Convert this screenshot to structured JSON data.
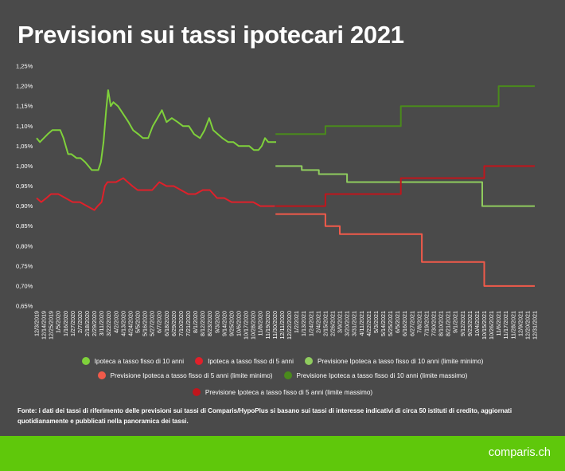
{
  "title": "Previsioni sui tassi ipotecari 2021",
  "chart_data": {
    "type": "line",
    "title": "Previsioni sui tassi ipotecari 2021",
    "xlabel": "",
    "ylabel": "",
    "ylim": [
      0.65,
      1.25
    ],
    "y_ticks": [
      "1,25%",
      "1,20%",
      "1,15%",
      "1,10%",
      "1,05%",
      "1,00%",
      "0,95%",
      "0,90%",
      "0,85%",
      "0,80%",
      "0,75%",
      "0,70%",
      "0,65%"
    ],
    "x_ticks": [
      "12/3/2019",
      "12/14/2019",
      "12/25/2019",
      "1/5/2020",
      "1/16/2020",
      "1/27/2020",
      "2/7/2020",
      "2/18/2020",
      "2/29/2020",
      "3/11/2020",
      "3/22/2020",
      "4/2/2020",
      "4/13/2020",
      "4/24/2020",
      "5/5/2020",
      "5/16/2020",
      "5/27/2020",
      "6/7/2020",
      "6/18/2020",
      "6/29/2020",
      "7/10/2020",
      "7/21/2020",
      "8/1/2020",
      "8/12/2020",
      "8/23/2020",
      "9/3/2020",
      "9/14/2020",
      "9/25/2020",
      "10/6/2020",
      "10/17/2020",
      "10/28/2020",
      "11/8/2020",
      "11/19/2020",
      "11/30/2020",
      "12/11/2020",
      "12/22/2020",
      "1/2/2021",
      "1/13/2021",
      "1/24/2021",
      "2/4/2021",
      "2/15/2021",
      "2/26/2021",
      "3/9/2021",
      "3/20/2021",
      "3/31/2021",
      "4/11/2021",
      "4/22/2021",
      "5/3/2021",
      "5/14/2021",
      "5/25/2021",
      "6/5/2021",
      "6/16/2021",
      "6/27/2021",
      "7/8/2021",
      "7/19/2021",
      "7/30/2021",
      "8/10/2021",
      "8/21/2021",
      "9/1/2021",
      "9/12/2021",
      "9/23/2021",
      "10/4/2021",
      "10/15/2021",
      "10/26/2021",
      "11/6/2021",
      "11/17/2021",
      "11/28/2021",
      "12/9/2021",
      "12/20/2021",
      "12/31/2021"
    ],
    "series": [
      {
        "name": "Ipoteca a tasso fisso di 10 anni",
        "color": "#7fd13b",
        "step": false,
        "x": [
          "12/3/2019",
          "12/8/2019",
          "12/20/2019",
          "12/27/2019",
          "1/8/2020",
          "1/13/2020",
          "1/20/2020",
          "1/25/2020",
          "2/2/2020",
          "2/8/2020",
          "2/15/2020",
          "2/20/2020",
          "2/25/2020",
          "3/1/2020",
          "3/6/2020",
          "3/10/2020",
          "3/14/2020",
          "3/18/2020",
          "3/21/2020",
          "3/25/2020",
          "3/29/2020",
          "4/5/2020",
          "4/13/2020",
          "4/21/2020",
          "4/28/2020",
          "5/6/2020",
          "5/13/2020",
          "5/21/2020",
          "5/28/2020",
          "6/4/2020",
          "6/11/2020",
          "6/18/2020",
          "6/26/2020",
          "7/5/2020",
          "7/13/2020",
          "7/22/2020",
          "7/30/2020",
          "8/8/2020",
          "8/15/2020",
          "8/22/2020",
          "8/28/2020",
          "9/4/2020",
          "9/11/2020",
          "9/20/2020",
          "9/28/2020",
          "10/6/2020",
          "10/14/2020",
          "10/22/2020",
          "10/29/2020",
          "11/5/2020",
          "11/10/2020",
          "11/15/2020",
          "11/20/2020",
          "11/26/2020",
          "12/2/2020"
        ],
        "y": [
          1.07,
          1.06,
          1.08,
          1.09,
          1.09,
          1.07,
          1.03,
          1.03,
          1.02,
          1.02,
          1.01,
          1.0,
          0.99,
          0.99,
          0.99,
          1.01,
          1.06,
          1.14,
          1.19,
          1.15,
          1.16,
          1.15,
          1.13,
          1.11,
          1.09,
          1.08,
          1.07,
          1.07,
          1.1,
          1.12,
          1.14,
          1.11,
          1.12,
          1.11,
          1.1,
          1.1,
          1.08,
          1.07,
          1.09,
          1.12,
          1.09,
          1.08,
          1.07,
          1.06,
          1.06,
          1.05,
          1.05,
          1.05,
          1.04,
          1.04,
          1.05,
          1.07,
          1.06,
          1.06,
          1.06
        ]
      },
      {
        "name": "Ipoteca a tasso fisso di 5 anni",
        "color": "#e0202a",
        "step": false,
        "x": [
          "12/3/2019",
          "12/10/2019",
          "12/18/2019",
          "12/25/2019",
          "1/5/2020",
          "1/16/2020",
          "1/27/2020",
          "2/7/2020",
          "2/18/2020",
          "2/29/2020",
          "3/5/2020",
          "3/11/2020",
          "3/16/2020",
          "3/20/2020",
          "3/25/2020",
          "4/2/2020",
          "4/13/2020",
          "4/20/2020",
          "4/27/2020",
          "5/5/2020",
          "5/16/2020",
          "5/27/2020",
          "6/7/2020",
          "6/18/2020",
          "6/29/2020",
          "7/10/2020",
          "7/21/2020",
          "8/1/2020",
          "8/12/2020",
          "8/23/2020",
          "9/3/2020",
          "9/14/2020",
          "9/25/2020",
          "10/6/2020",
          "10/17/2020",
          "10/28/2020",
          "11/8/2020",
          "11/19/2020",
          "11/30/2020"
        ],
        "y": [
          0.92,
          0.91,
          0.92,
          0.93,
          0.93,
          0.92,
          0.91,
          0.91,
          0.9,
          0.89,
          0.9,
          0.91,
          0.95,
          0.96,
          0.96,
          0.96,
          0.97,
          0.96,
          0.95,
          0.94,
          0.94,
          0.94,
          0.96,
          0.95,
          0.95,
          0.94,
          0.93,
          0.93,
          0.94,
          0.94,
          0.92,
          0.92,
          0.91,
          0.91,
          0.91,
          0.91,
          0.9,
          0.9,
          0.9
        ]
      },
      {
        "name": "Previsione Ipoteca a tasso fisso di 10 anni (limite minimo)",
        "color": "#8fcc5e",
        "step": true,
        "x": [
          "12/1/2020",
          "1/10/2021",
          "2/5/2021",
          "3/20/2021",
          "10/12/2021",
          "12/31/2021"
        ],
        "y": [
          1.0,
          0.99,
          0.98,
          0.96,
          0.9,
          0.9
        ]
      },
      {
        "name": "Previsione Ipoteca a tasso fisso di 5 anni (limite minimo)",
        "color": "#f15a4a",
        "step": true,
        "x": [
          "12/1/2020",
          "2/15/2021",
          "3/9/2021",
          "7/12/2021",
          "10/15/2021",
          "12/31/2021"
        ],
        "y": [
          0.88,
          0.85,
          0.83,
          0.76,
          0.7,
          0.7
        ]
      },
      {
        "name": "Previsione Ipoteca a tasso fisso di 10 anni (limite massimo)",
        "color": "#4a8a1c",
        "step": true,
        "x": [
          "12/1/2020",
          "2/15/2021",
          "6/10/2021",
          "11/6/2021",
          "12/31/2021"
        ],
        "y": [
          1.08,
          1.1,
          1.15,
          1.2,
          1.2
        ]
      },
      {
        "name": "Previsione Ipoteca a tasso fisso di 5 anni (limite massimo)",
        "color": "#c0151c",
        "step": true,
        "x": [
          "12/1/2020",
          "2/15/2021",
          "6/10/2021",
          "10/15/2021",
          "12/31/2021"
        ],
        "y": [
          0.9,
          0.93,
          0.97,
          1.0,
          1.0
        ]
      }
    ],
    "grid": false,
    "legend_position": "bottom"
  },
  "source_note": "Fonte: i dati dei tassi di riferimento delle previsioni sui tassi di Comparis/HypoPlus si basano sui tassi di interesse indicativi di circa 50 istituti di credito, aggiornati quotidianamente e pubblicati nella panoramica dei tassi.",
  "footer": {
    "brand": "comparis.ch",
    "background": "#5fc80b"
  }
}
